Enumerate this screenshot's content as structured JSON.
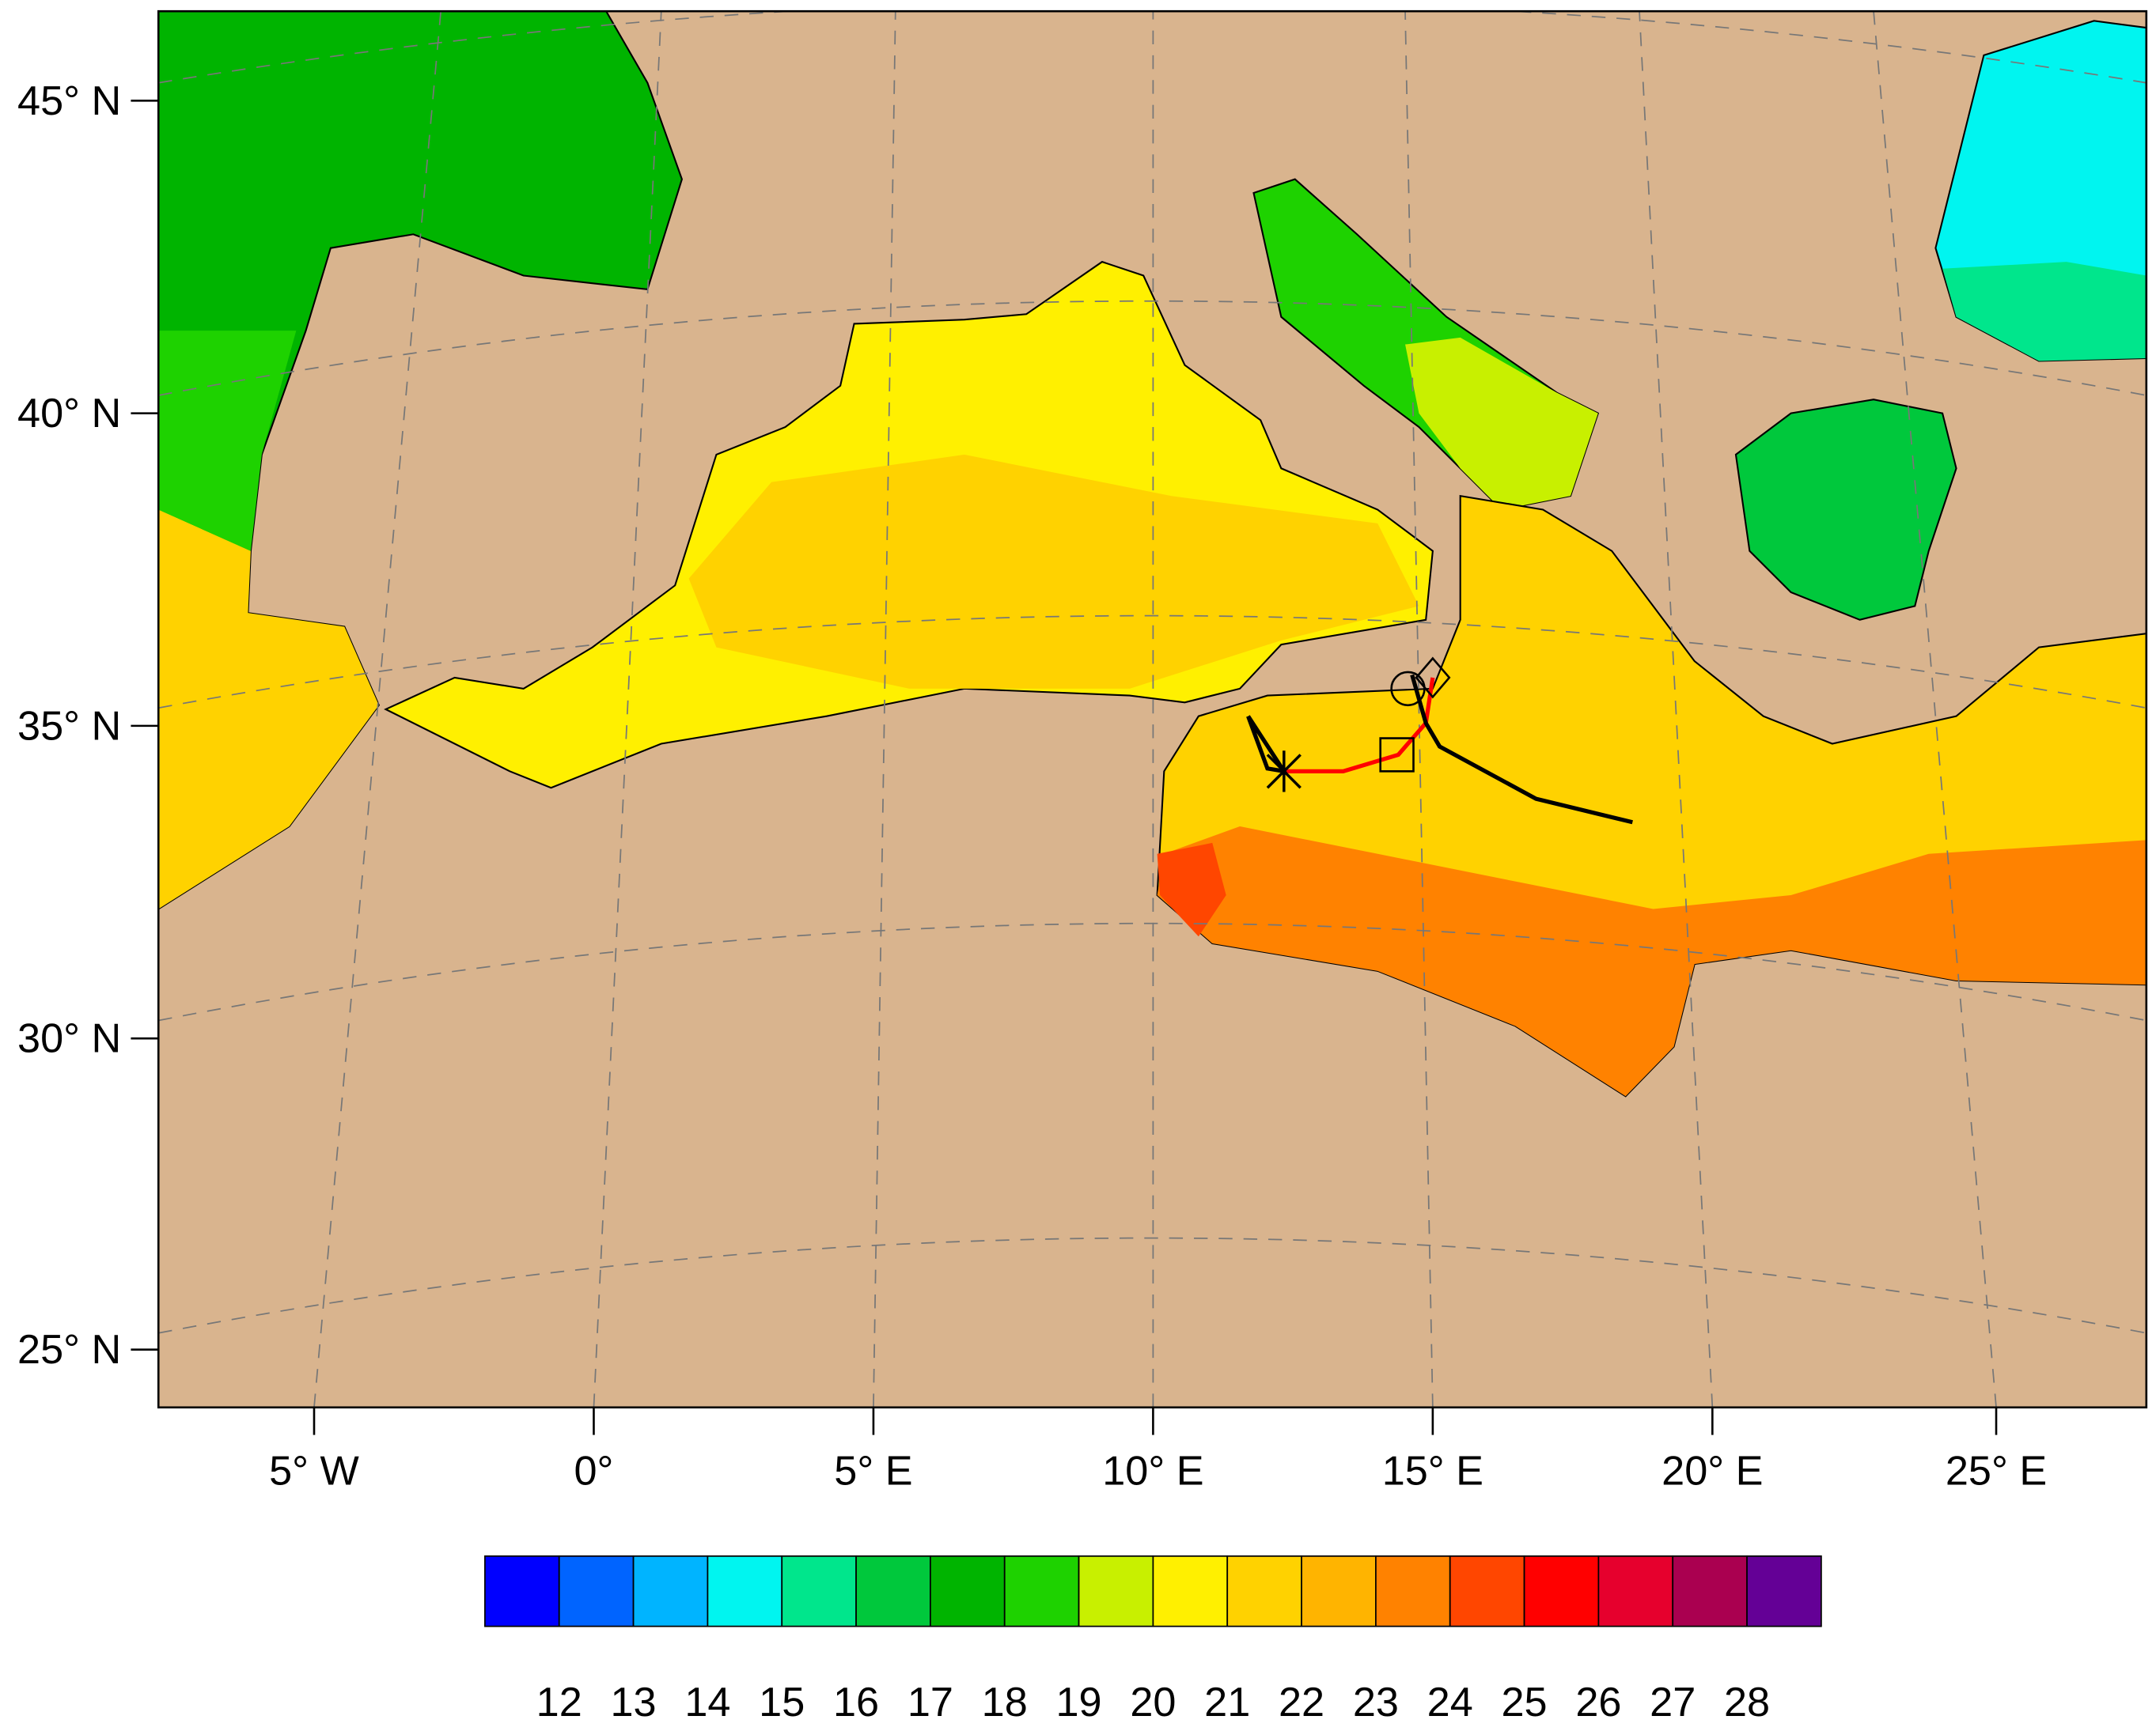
{
  "map": {
    "lat_labels": [
      "45° N",
      "40° N",
      "35° N",
      "30° N",
      "25° N"
    ],
    "lon_labels": [
      "5° W",
      "0°",
      "5° E",
      "10° E",
      "15° E",
      "20° E",
      "25° E"
    ]
  },
  "colorbar": {
    "levels": [
      12,
      13,
      14,
      15,
      16,
      17,
      18,
      19,
      20,
      21,
      22,
      23,
      24,
      25,
      26,
      27,
      28
    ],
    "colors": [
      "#0000ff",
      "#0064ff",
      "#00b4ff",
      "#00f5f0",
      "#00e68c",
      "#00c83c",
      "#00b400",
      "#1ed200",
      "#c8f000",
      "#fff000",
      "#ffd200",
      "#ffb400",
      "#ff8200",
      "#ff4600",
      "#ff0000",
      "#e6002d",
      "#aa0050",
      "#640096"
    ]
  }
}
